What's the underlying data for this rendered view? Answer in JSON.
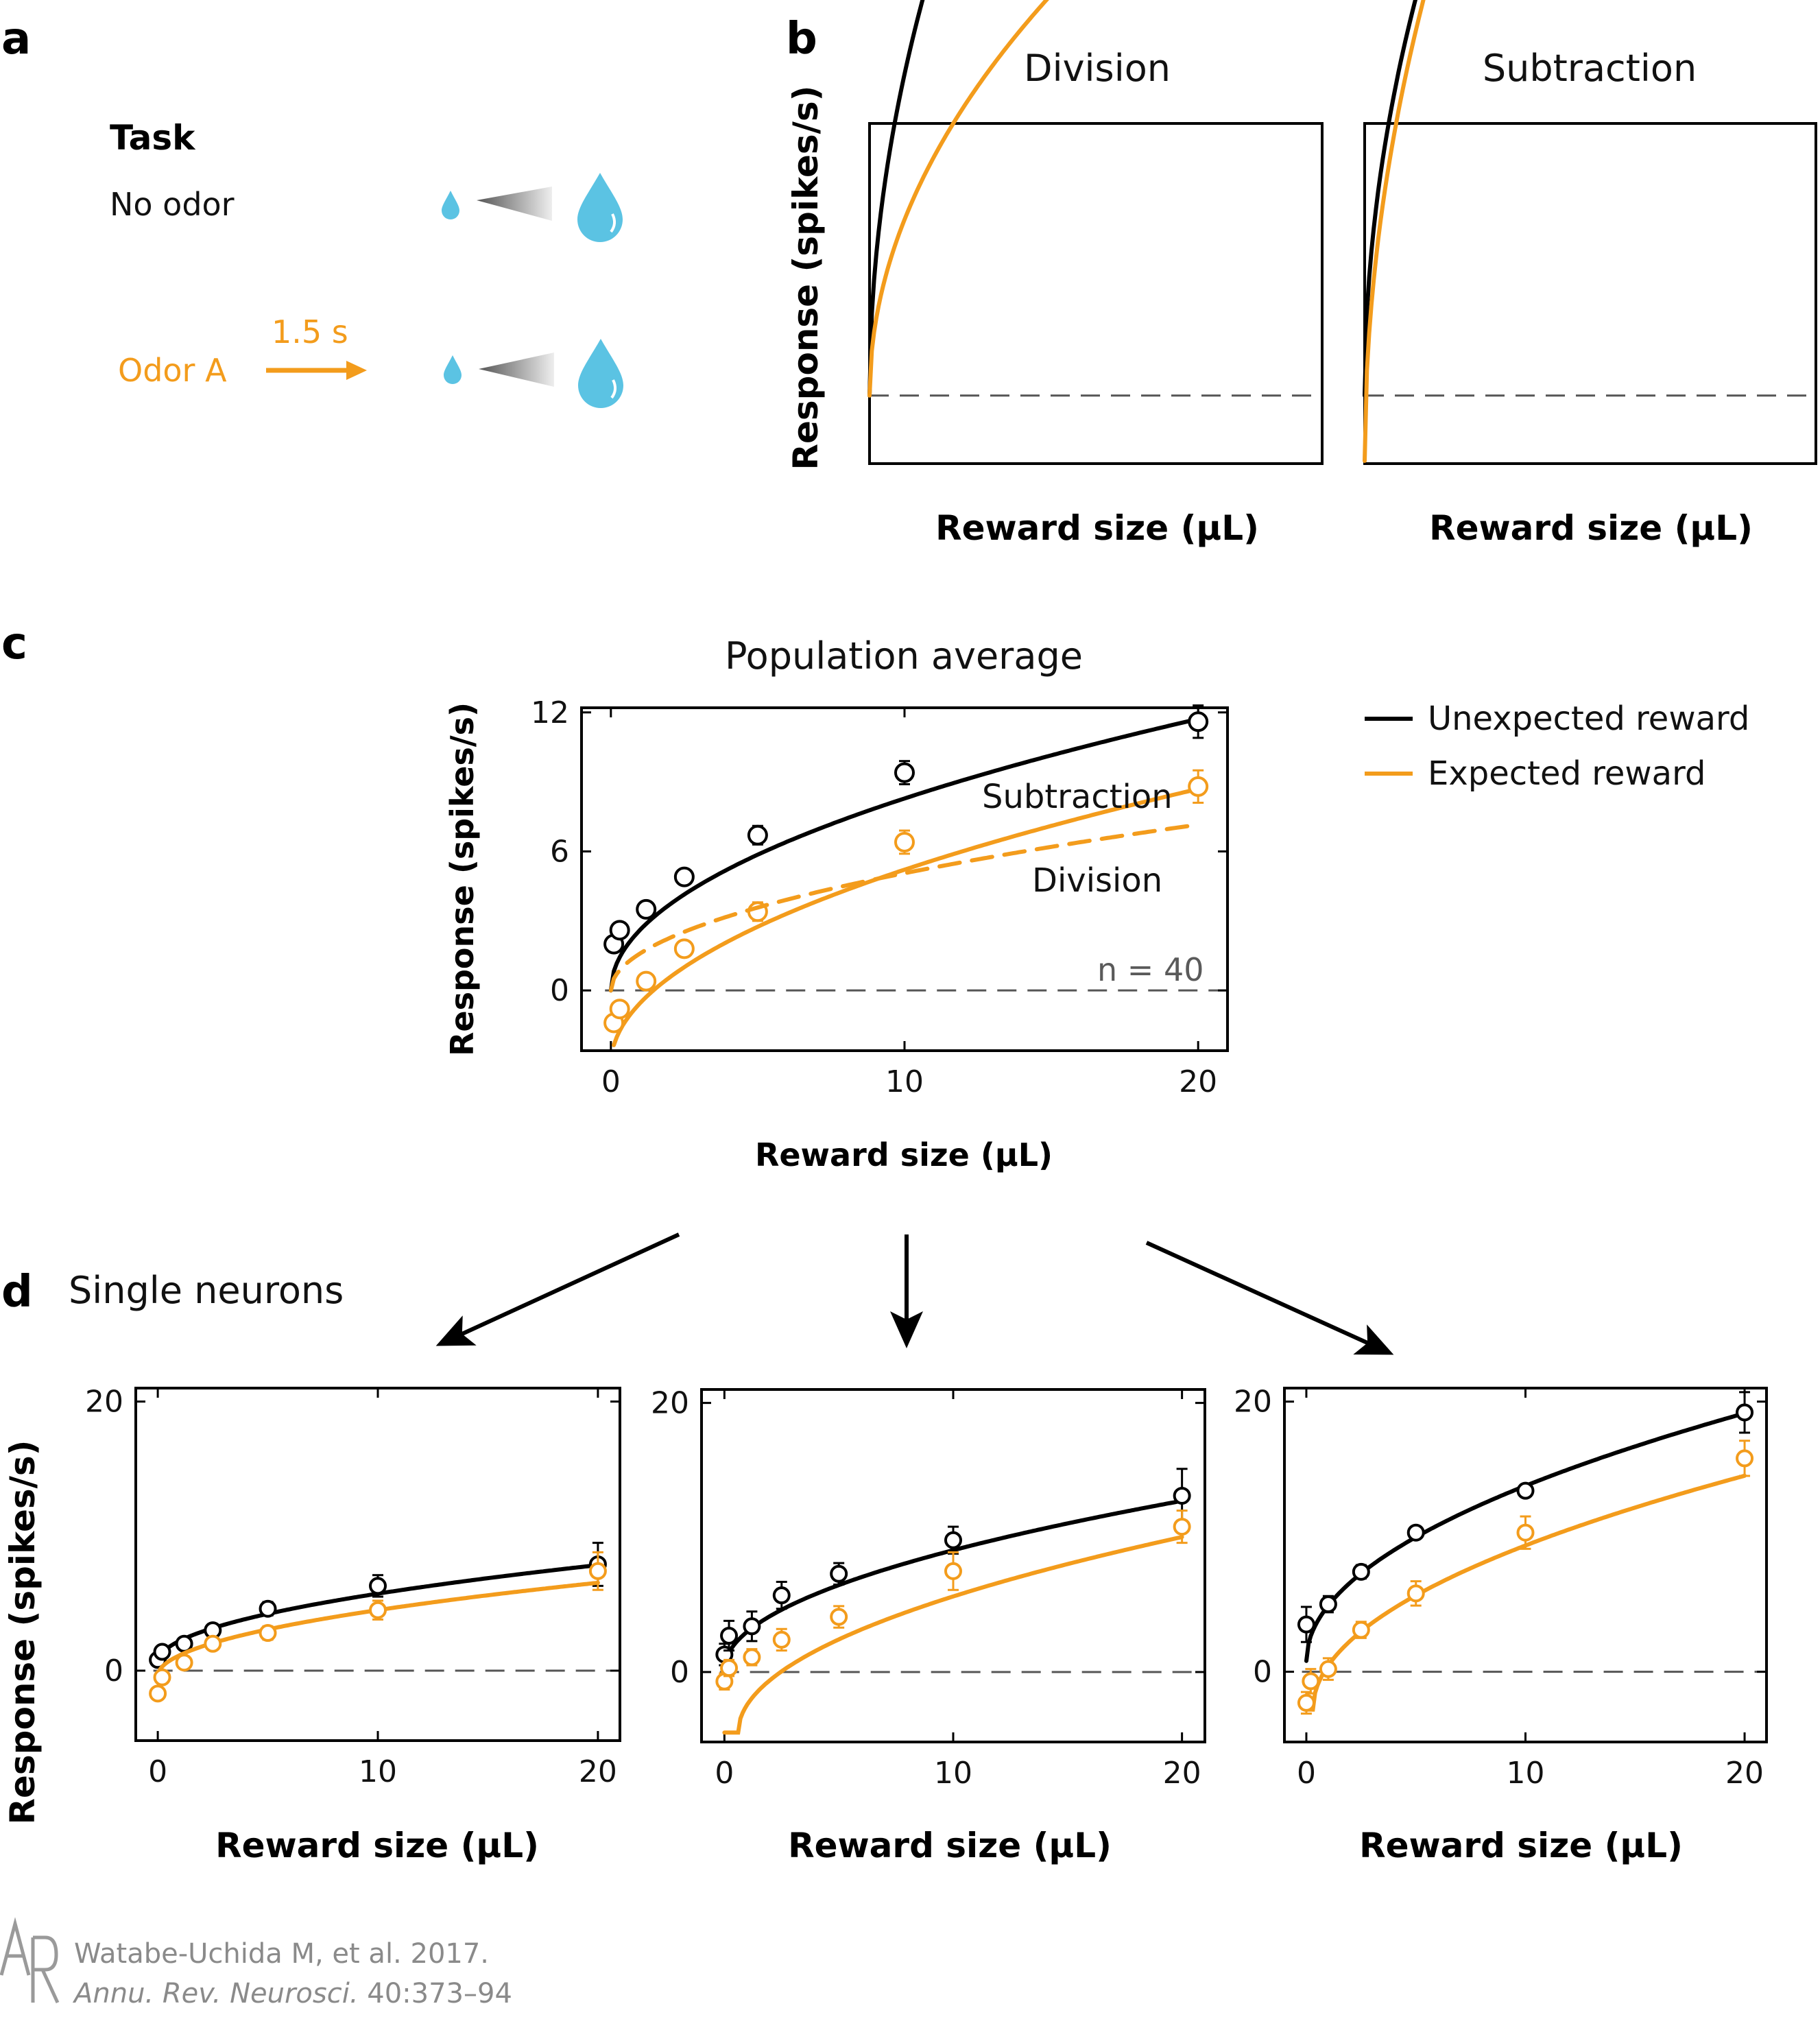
{
  "panels": {
    "a": "a",
    "b": "b",
    "c": "c",
    "d": "d"
  },
  "task": {
    "heading": "Task",
    "no_odor": "No odor",
    "odor_a": "Odor A",
    "delay": "1.5 s"
  },
  "b": {
    "ylabel": "Response (spikes/s)",
    "left_title": "Division",
    "right_title": "Subtraction",
    "xlabel": "Reward size (μL)"
  },
  "c": {
    "title": "Population average",
    "ylabel": "Response (spikes/s)",
    "xlabel": "Reward size (μL)",
    "label_subtraction": "Subtraction",
    "label_division": "Division",
    "n_label": "n = 40"
  },
  "legend": {
    "unexpected": "Unexpected reward",
    "expected": "Expected reward"
  },
  "d": {
    "title": "Single neurons",
    "ylabel": "Response (spikes/s)",
    "xlabel": "Reward size (μL)"
  },
  "credit": {
    "line1": "Watabe-Uchida M, et al. 2017.",
    "line2_italic": "Annu. Rev. Neurosci.",
    "line2_rest": " 40:373–94"
  },
  "colors": {
    "unexpected": "#000000",
    "expected": "#F39C1C",
    "drop": "#5BC3E3",
    "baseline": "#555555"
  },
  "chart_data": [
    {
      "id": "b-division",
      "type": "line",
      "title": "Division",
      "xlabel": "Reward size (μL)",
      "ylabel": "Response (spikes/s)",
      "xlim": [
        0,
        20
      ],
      "ylim": [
        -0.25,
        1.0
      ],
      "baseline": 0,
      "series": [
        {
          "name": "Unexpected reward",
          "fn": "sqrt",
          "a": 0.95,
          "offset": 0,
          "shift": 0
        },
        {
          "name": "Expected reward",
          "fn": "sqrt",
          "a": 0.52,
          "offset": 0,
          "shift": 0
        }
      ]
    },
    {
      "id": "b-subtraction",
      "type": "line",
      "title": "Subtraction",
      "xlabel": "Reward size (μL)",
      "ylabel": "Response (spikes/s)",
      "xlim": [
        0,
        20
      ],
      "ylim": [
        -0.25,
        1.0
      ],
      "baseline": 0,
      "series": [
        {
          "name": "Unexpected reward",
          "fn": "sqrt",
          "a": 0.97,
          "offset": 0,
          "shift": 0
        },
        {
          "name": "Expected reward",
          "fn": "sqrt",
          "a": 1.05,
          "offset": -0.24,
          "shift": 0
        }
      ]
    },
    {
      "id": "c-population",
      "type": "line",
      "title": "Population average",
      "xlabel": "Reward size (μL)",
      "ylabel": "Response (spikes/s)",
      "xlim": [
        -1,
        21
      ],
      "ylim": [
        -2.6,
        12.2
      ],
      "xticks": [
        0,
        10,
        20
      ],
      "yticks": [
        0,
        6,
        12
      ],
      "baseline": 0,
      "series": [
        {
          "name": "Unexpected reward",
          "points": [
            [
              0.1,
              2.0
            ],
            [
              0.3,
              2.6
            ],
            [
              1.2,
              3.5
            ],
            [
              2.5,
              4.9
            ],
            [
              5,
              6.7
            ],
            [
              10,
              9.4
            ],
            [
              20,
              11.6
            ]
          ],
          "errors": [
            0.3,
            0.3,
            0.3,
            0.3,
            0.4,
            0.5,
            0.7
          ],
          "fit": {
            "fn": "sqrt",
            "a": 2.62,
            "offset": 0.0,
            "shift": 0
          }
        },
        {
          "name": "Expected reward (Subtraction)",
          "points": [
            [
              0.1,
              -1.4
            ],
            [
              0.3,
              -0.8
            ],
            [
              1.2,
              0.4
            ],
            [
              2.5,
              1.8
            ],
            [
              5,
              3.4
            ],
            [
              10,
              6.4
            ],
            [
              20,
              8.8
            ]
          ],
          "errors": [
            0.3,
            0.3,
            0.3,
            0.3,
            0.4,
            0.5,
            0.7
          ],
          "fit": {
            "fn": "sqrt",
            "a": 2.66,
            "offset": -3.2,
            "shift": 0
          }
        },
        {
          "name": "Expected reward (Division)",
          "dashed": true,
          "fit": {
            "fn": "sqrt",
            "a": 1.6,
            "offset": 0.0,
            "shift": 0
          }
        }
      ]
    },
    {
      "id": "d-neuron-1",
      "type": "line",
      "xlabel": "Reward size (μL)",
      "ylabel": "Response (spikes/s)",
      "xlim": [
        -1,
        21
      ],
      "ylim": [
        -5.2,
        21
      ],
      "xticks": [
        0,
        10,
        20
      ],
      "yticks": [
        0,
        20
      ],
      "baseline": 0,
      "series": [
        {
          "name": "Unexpected reward",
          "points": [
            [
              0,
              0.8
            ],
            [
              0.2,
              1.4
            ],
            [
              1.2,
              2.0
            ],
            [
              2.5,
              3.0
            ],
            [
              5,
              4.6
            ],
            [
              10,
              6.3
            ],
            [
              20,
              7.9
            ]
          ],
          "errors": [
            0.4,
            0.4,
            0.4,
            0.4,
            0.5,
            0.8,
            1.6
          ],
          "fit": {
            "fn": "sqrt",
            "a": 1.62,
            "offset": 0.6,
            "shift": 0
          }
        },
        {
          "name": "Expected reward",
          "points": [
            [
              0,
              -1.7
            ],
            [
              0.2,
              -0.5
            ],
            [
              1.2,
              0.6
            ],
            [
              2.5,
              2.0
            ],
            [
              5,
              2.8
            ],
            [
              10,
              4.5
            ],
            [
              20,
              7.4
            ]
          ],
          "errors": [
            0.4,
            0.4,
            0.4,
            0.4,
            0.5,
            0.7,
            1.4
          ],
          "fit": {
            "fn": "sqrt",
            "a": 1.55,
            "offset": -0.4,
            "shift": 0
          }
        }
      ]
    },
    {
      "id": "d-neuron-2",
      "type": "line",
      "xlabel": "Reward size (μL)",
      "ylabel": "",
      "xlim": [
        -1,
        21
      ],
      "ylim": [
        -5.2,
        21
      ],
      "xticks": [
        0,
        10,
        20
      ],
      "yticks": [
        0,
        20
      ],
      "baseline": 0,
      "series": [
        {
          "name": "Unexpected reward",
          "points": [
            [
              0,
              1.3
            ],
            [
              0.2,
              2.7
            ],
            [
              1.2,
              3.4
            ],
            [
              2.5,
              5.7
            ],
            [
              5,
              7.3
            ],
            [
              10,
              9.8
            ],
            [
              20,
              13.1
            ]
          ],
          "errors": [
            0.8,
            1.1,
            1.1,
            1.0,
            0.8,
            1.0,
            2.0
          ],
          "fit": {
            "fn": "sqrt",
            "a": 2.8,
            "offset": 0.2,
            "shift": 0
          }
        },
        {
          "name": "Expected reward",
          "points": [
            [
              0,
              -0.7
            ],
            [
              0.2,
              0.3
            ],
            [
              1.2,
              1.1
            ],
            [
              2.5,
              2.4
            ],
            [
              5,
              4.1
            ],
            [
              10,
              7.5
            ],
            [
              20,
              10.8
            ]
          ],
          "errors": [
            0.6,
            0.6,
            0.6,
            0.8,
            0.8,
            1.4,
            1.2
          ],
          "fit": {
            "fn": "sqrt",
            "a": 3.3,
            "offset": -4.5,
            "shift": 0.6
          }
        }
      ]
    },
    {
      "id": "d-neuron-3",
      "type": "line",
      "xlabel": "Reward size (μL)",
      "ylabel": "",
      "xlim": [
        -1,
        21
      ],
      "ylim": [
        -5.2,
        21
      ],
      "xticks": [
        0,
        10,
        20
      ],
      "yticks": [
        0,
        20
      ],
      "baseline": 0,
      "series": [
        {
          "name": "Unexpected reward",
          "points": [
            [
              0,
              3.5
            ],
            [
              1,
              5.0
            ],
            [
              2.5,
              7.4
            ],
            [
              5,
              10.3
            ],
            [
              10,
              13.4
            ],
            [
              20,
              19.2
            ]
          ],
          "errors": [
            1.3,
            0.6,
            0.5,
            0.4,
            0.4,
            1.5
          ],
          "fit": {
            "fn": "sqrt",
            "a": 4.1,
            "offset": 0.8,
            "shift": 0.0
          }
        },
        {
          "name": "Expected reward",
          "points": [
            [
              0,
              -2.3
            ],
            [
              0.2,
              -0.7
            ],
            [
              1,
              0.2
            ],
            [
              2.5,
              3.1
            ],
            [
              5,
              5.8
            ],
            [
              10,
              10.3
            ],
            [
              20,
              15.8
            ]
          ],
          "errors": [
            0.8,
            0.9,
            0.8,
            0.6,
            0.9,
            1.2,
            1.3
          ],
          "fit": {
            "fn": "sqrt",
            "a": 3.9,
            "offset": -2.8,
            "shift": 0.3
          }
        }
      ]
    }
  ]
}
